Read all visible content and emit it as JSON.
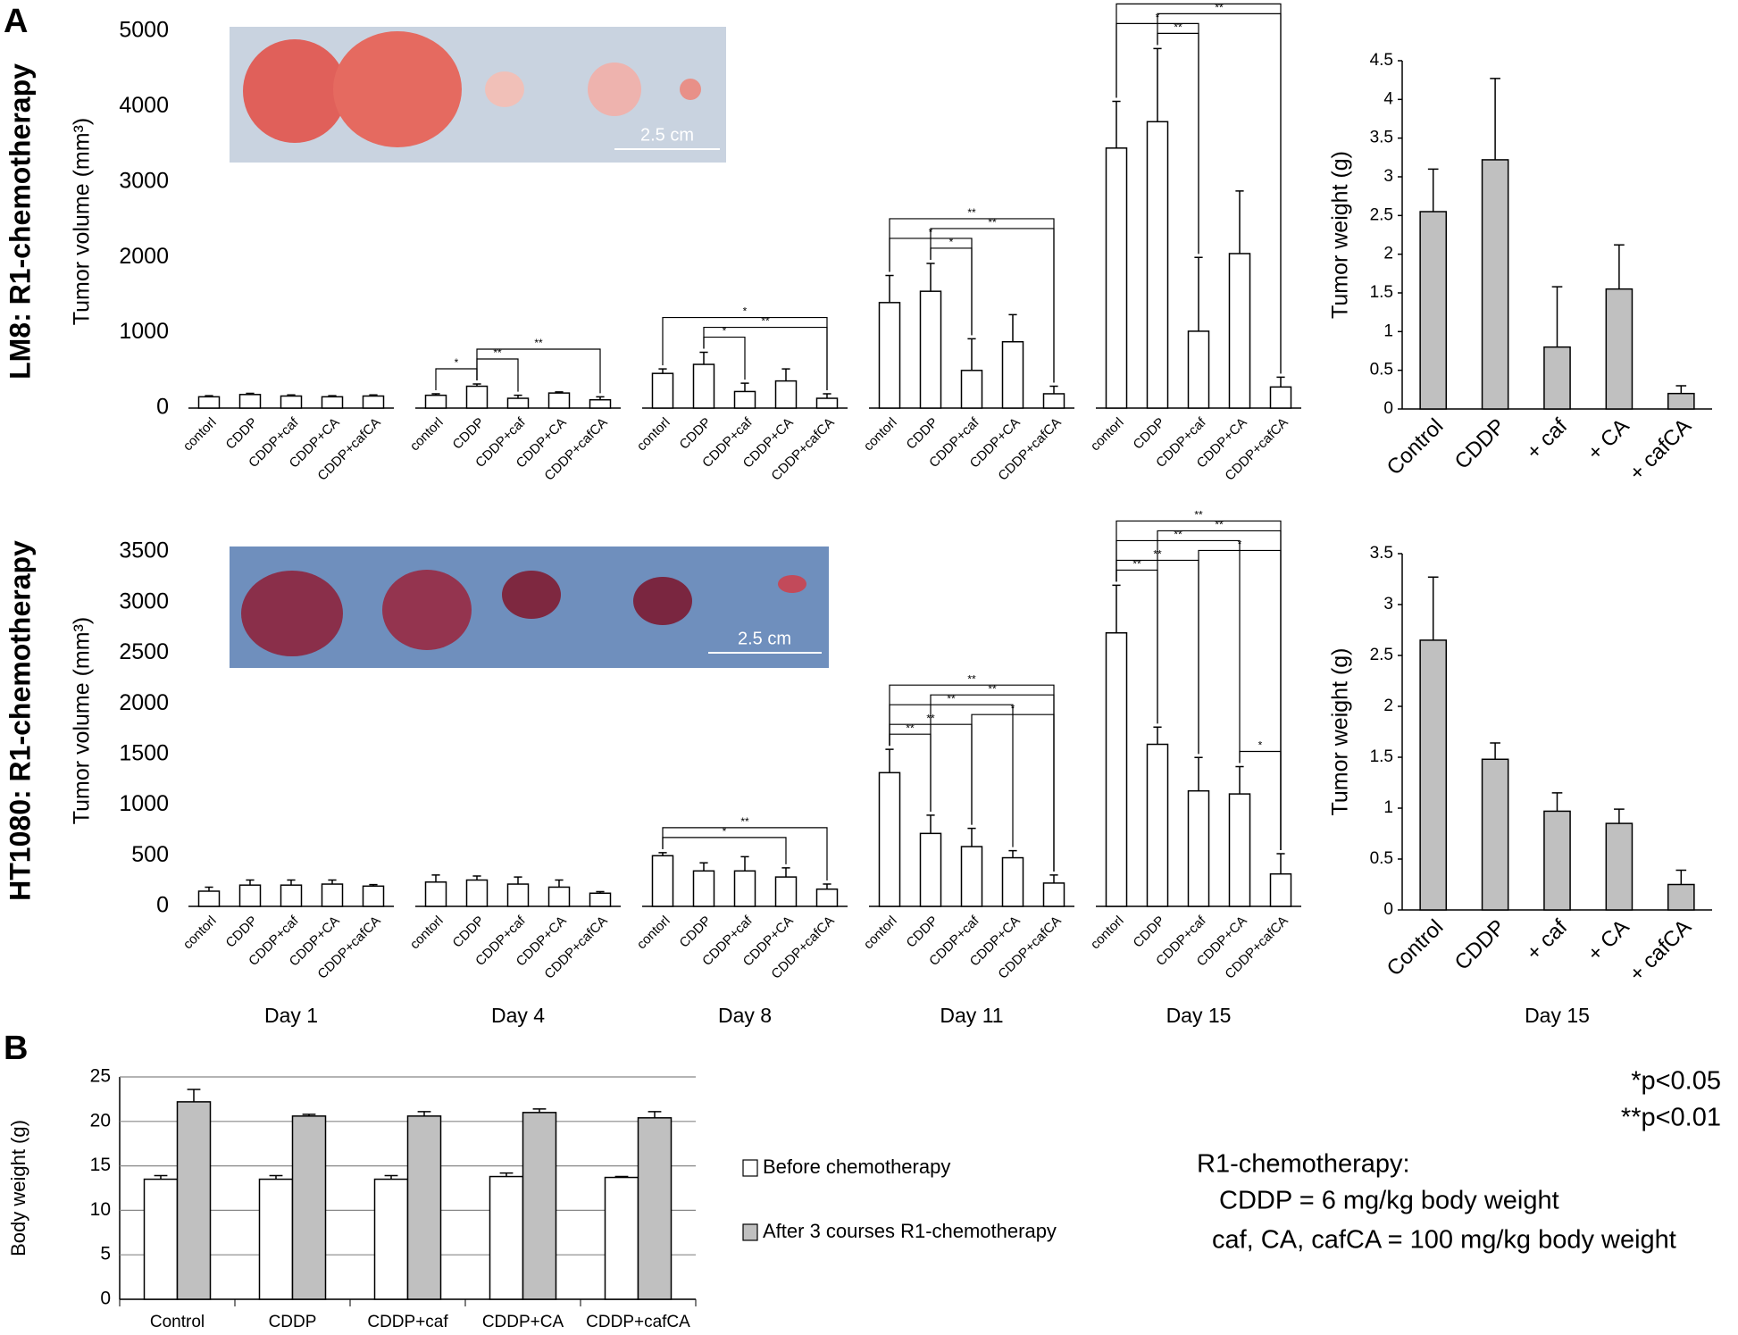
{
  "labels": {
    "a": "A",
    "b": "B"
  },
  "photos": [
    {
      "scale": "2.5 cm"
    },
    {
      "scale": "2.5 cm"
    }
  ],
  "notes": {
    "p1": "*p<0.05",
    "p2": "**p<0.01",
    "heading": "R1-chemotherapy:",
    "line1": "CDDP = 6 mg/kg body weight",
    "line2": "caf, CA, cafCA = 100 mg/kg body weight"
  },
  "chart_data": [
    {
      "type": "bar",
      "row_label": "LM8: R1-chemotherapy",
      "ylabel": "Tumor volume (mm³)",
      "color": "#ffffff",
      "categories": [
        "contorl",
        "CDDP",
        "CDDP+caf",
        "CDDP+CA",
        "CDDP+cafCA"
      ],
      "ylim": [
        0,
        5000
      ],
      "yticks": [
        0,
        1000,
        2000,
        3000,
        4000,
        5000
      ],
      "series": [
        {
          "values": [
            150,
            180,
            160,
            150,
            160
          ],
          "errors": [
            15,
            15,
            15,
            15,
            15
          ],
          "brackets": []
        },
        {
          "values": [
            170,
            290,
            130,
            200,
            110
          ],
          "errors": [
            20,
            30,
            40,
            15,
            40
          ],
          "brackets": [
            {
              "from": 0,
              "to": 1,
              "label": "*"
            },
            {
              "from": 1,
              "to": 2,
              "label": "**"
            },
            {
              "from": 1,
              "to": 4,
              "label": "**"
            }
          ]
        },
        {
          "values": [
            460,
            580,
            220,
            360,
            130
          ],
          "errors": [
            60,
            160,
            110,
            160,
            60
          ],
          "brackets": [
            {
              "from": 1,
              "to": 2,
              "label": "*"
            },
            {
              "from": 0,
              "to": 4,
              "label": "*"
            },
            {
              "from": 1,
              "to": 4,
              "label": "**"
            }
          ]
        },
        {
          "values": [
            1400,
            1550,
            500,
            880,
            190
          ],
          "errors": [
            360,
            370,
            420,
            360,
            100
          ],
          "brackets": [
            {
              "from": 1,
              "to": 2,
              "label": "*"
            },
            {
              "from": 0,
              "to": 2,
              "label": "*"
            },
            {
              "from": 1,
              "to": 4,
              "label": "**"
            },
            {
              "from": 0,
              "to": 4,
              "label": "**"
            }
          ]
        },
        {
          "values": [
            3450,
            3800,
            1020,
            2050,
            280
          ],
          "errors": [
            620,
            970,
            980,
            830,
            130
          ],
          "brackets": [
            {
              "from": 1,
              "to": 2,
              "label": "**"
            },
            {
              "from": 0,
              "to": 2,
              "label": "*"
            },
            {
              "from": 1,
              "to": 4,
              "label": "**"
            },
            {
              "from": 0,
              "to": 4,
              "label": "**"
            }
          ]
        }
      ]
    },
    {
      "type": "bar",
      "ylabel": "Tumor weight (g)",
      "color": "#c0c0c0",
      "categories": [
        "Control",
        "CDDP",
        "+ caf",
        "+ CA",
        "+ cafCA"
      ],
      "values": [
        2.55,
        3.22,
        0.8,
        1.55,
        0.2
      ],
      "errors": [
        0.55,
        1.05,
        0.78,
        0.57,
        0.1
      ],
      "ylim": [
        0,
        4.5
      ],
      "yticks": [
        0,
        0.5,
        1,
        1.5,
        2,
        2.5,
        3,
        3.5,
        4,
        4.5
      ]
    },
    {
      "type": "bar",
      "row_label": "HT1080: R1-chemotherapy",
      "ylabel": "Tumor volume (mm³)",
      "color": "#ffffff",
      "categories": [
        "contorl",
        "CDDP",
        "CDDP+caf",
        "CDDP+CA",
        "CDDP+cafCA"
      ],
      "ylim": [
        0,
        3500
      ],
      "yticks": [
        0,
        500,
        1000,
        1500,
        2000,
        2500,
        3000,
        3500
      ],
      "series": [
        {
          "name": "Day 1",
          "values": [
            150,
            210,
            210,
            220,
            200
          ],
          "errors": [
            40,
            50,
            50,
            40,
            15
          ],
          "brackets": []
        },
        {
          "name": "Day 4",
          "values": [
            240,
            260,
            220,
            190,
            130
          ],
          "errors": [
            70,
            40,
            70,
            70,
            15
          ],
          "brackets": []
        },
        {
          "name": "Day 8",
          "values": [
            500,
            350,
            350,
            290,
            170
          ],
          "errors": [
            30,
            80,
            140,
            90,
            50
          ],
          "brackets": [
            {
              "from": 0,
              "to": 3,
              "label": "*"
            },
            {
              "from": 0,
              "to": 4,
              "label": "**"
            }
          ]
        },
        {
          "name": "Day 11",
          "values": [
            1320,
            720,
            590,
            480,
            230
          ],
          "errors": [
            230,
            180,
            180,
            70,
            80
          ],
          "brackets": [
            {
              "from": 0,
              "to": 1,
              "label": "**"
            },
            {
              "from": 0,
              "to": 2,
              "label": "**"
            },
            {
              "from": 0,
              "to": 3,
              "label": "**"
            },
            {
              "from": 0,
              "to": 4,
              "label": "**"
            },
            {
              "from": 2,
              "to": 4,
              "label": "*"
            },
            {
              "from": 1,
              "to": 4,
              "label": "**"
            }
          ]
        },
        {
          "name": "Day 15",
          "values": [
            2700,
            1600,
            1140,
            1110,
            320
          ],
          "errors": [
            470,
            170,
            330,
            270,
            200
          ],
          "brackets": [
            {
              "from": 0,
              "to": 1,
              "label": "**"
            },
            {
              "from": 0,
              "to": 2,
              "label": "**"
            },
            {
              "from": 0,
              "to": 3,
              "label": "**"
            },
            {
              "from": 0,
              "to": 4,
              "label": "**"
            },
            {
              "from": 3,
              "to": 4,
              "label": "*"
            },
            {
              "from": 2,
              "to": 4,
              "label": "*"
            },
            {
              "from": 1,
              "to": 4,
              "label": "**"
            }
          ]
        }
      ]
    },
    {
      "type": "bar",
      "ylabel": "Tumor weight (g)",
      "xlabel": "Day 15",
      "color": "#c0c0c0",
      "categories": [
        "Control",
        "CDDP",
        "+ caf",
        "+ CA",
        "+ cafCA"
      ],
      "values": [
        2.65,
        1.48,
        0.97,
        0.85,
        0.25
      ],
      "errors": [
        0.62,
        0.16,
        0.18,
        0.14,
        0.14
      ],
      "ylim": [
        0,
        3.5
      ],
      "yticks": [
        0,
        0.5,
        1,
        1.5,
        2,
        2.5,
        3,
        3.5
      ]
    },
    {
      "type": "bar",
      "ylabel": "Body weight (g)",
      "grid": true,
      "legend": "right",
      "categories": [
        "Control",
        "CDDP",
        "CDDP+caf",
        "CDDP+CA",
        "CDDP+cafCA"
      ],
      "ylim": [
        0,
        25
      ],
      "yticks": [
        0,
        5,
        10,
        15,
        20,
        25
      ],
      "series": [
        {
          "name": "Before chemotherapy",
          "color": "#ffffff",
          "values": [
            13.5,
            13.5,
            13.5,
            13.8,
            13.7
          ],
          "errors": [
            0.4,
            0.4,
            0.4,
            0.4,
            0.1
          ]
        },
        {
          "name": "After 3 courses R1-chemotherapy",
          "color": "#c0c0c0",
          "values": [
            22.2,
            20.6,
            20.6,
            21.0,
            20.4
          ],
          "errors": [
            1.4,
            0.2,
            0.5,
            0.4,
            0.7
          ]
        }
      ]
    }
  ]
}
